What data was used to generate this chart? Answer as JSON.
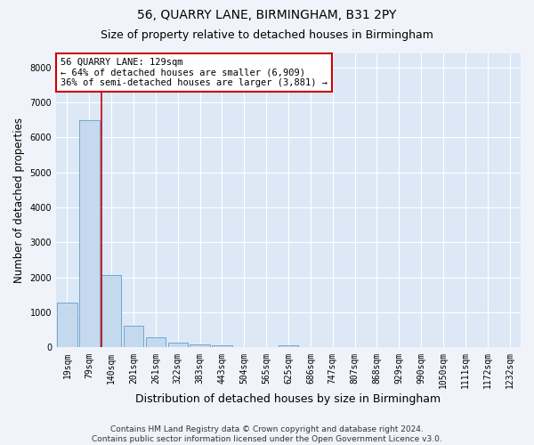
{
  "title": "56, QUARRY LANE, BIRMINGHAM, B31 2PY",
  "subtitle": "Size of property relative to detached houses in Birmingham",
  "xlabel": "Distribution of detached houses by size in Birmingham",
  "ylabel": "Number of detached properties",
  "footer_line1": "Contains HM Land Registry data © Crown copyright and database right 2024.",
  "footer_line2": "Contains public sector information licensed under the Open Government Licence v3.0.",
  "bar_categories": [
    "19sqm",
    "79sqm",
    "140sqm",
    "201sqm",
    "261sqm",
    "322sqm",
    "383sqm",
    "443sqm",
    "504sqm",
    "565sqm",
    "625sqm",
    "686sqm",
    "747sqm",
    "807sqm",
    "868sqm",
    "929sqm",
    "990sqm",
    "1050sqm",
    "1111sqm",
    "1172sqm",
    "1232sqm"
  ],
  "bar_values": [
    1270,
    6490,
    2060,
    630,
    290,
    130,
    80,
    60,
    0,
    0,
    60,
    0,
    0,
    0,
    0,
    0,
    0,
    0,
    0,
    0,
    0
  ],
  "bar_color": "#c5d9ee",
  "bar_edgecolor": "#6ea8d0",
  "property_line_x": 1.55,
  "annotation_text": "56 QUARRY LANE: 129sqm\n← 64% of detached houses are smaller (6,909)\n36% of semi-detached houses are larger (3,881) →",
  "annotation_box_facecolor": "#ffffff",
  "annotation_box_edgecolor": "#cc0000",
  "property_line_color": "#cc0000",
  "ylim": [
    0,
    8400
  ],
  "yticks": [
    0,
    1000,
    2000,
    3000,
    4000,
    5000,
    6000,
    7000,
    8000
  ],
  "bg_color": "#f0f4fa",
  "plot_bg_color": "#dce8f5",
  "grid_color": "#ffffff",
  "title_fontsize": 10,
  "subtitle_fontsize": 9,
  "tick_fontsize": 7,
  "ylabel_fontsize": 8.5,
  "xlabel_fontsize": 9,
  "footer_fontsize": 6.5,
  "annotation_fontsize": 7.5
}
